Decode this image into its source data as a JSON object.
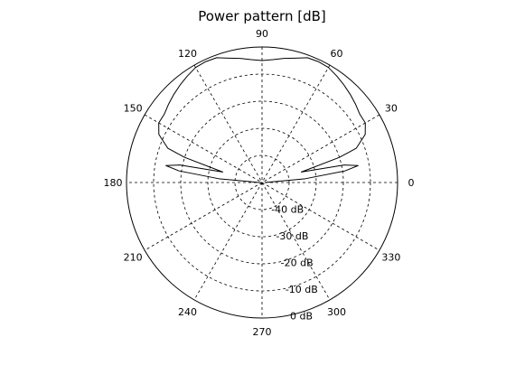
{
  "chart_data": {
    "type": "polar-line",
    "title": "Power pattern [dB]",
    "r_unit": "dB",
    "r_range": [
      -50,
      0
    ],
    "ring_values": [
      -40,
      -30,
      -20,
      -10,
      0
    ],
    "ring_labels": [
      "-40 dB",
      "-30 dB",
      "-20 dB",
      "-10 dB",
      "0 dB"
    ],
    "angle_ticks": [
      0,
      30,
      60,
      90,
      120,
      150,
      180,
      210,
      240,
      270,
      300,
      330
    ],
    "angle_labels": [
      "0",
      "30",
      "60",
      "90",
      "120",
      "150",
      "180",
      "210",
      "240",
      "270",
      "300",
      "330"
    ],
    "grid": true,
    "line_style": "dashed grid, solid outer circle",
    "series": [
      {
        "theta_deg": [
          0,
          5,
          8,
          10,
          12,
          15,
          18,
          20,
          25,
          30,
          35,
          40,
          45,
          50,
          55,
          60,
          65,
          70,
          75,
          80,
          85,
          90,
          95,
          100,
          105,
          110,
          115,
          120,
          125,
          130,
          135,
          140,
          145,
          150,
          155,
          160,
          162,
          165,
          168,
          170,
          172,
          175,
          180
        ],
        "r_db": [
          -49,
          -34,
          -19,
          -14,
          -19,
          -35,
          -20,
          -13,
          -8,
          -6,
          -6,
          -5,
          -4,
          -3,
          -2,
          -1,
          -0.8,
          -1,
          -2.5,
          -3.5,
          -4.5,
          -5,
          -4.5,
          -3.5,
          -2.5,
          -1,
          -0.8,
          -1,
          -2,
          -3,
          -4,
          -5,
          -6,
          -6,
          -8,
          -13,
          -20,
          -35,
          -19,
          -14,
          -19,
          -34,
          -49
        ],
        "color": "#000000"
      }
    ]
  }
}
